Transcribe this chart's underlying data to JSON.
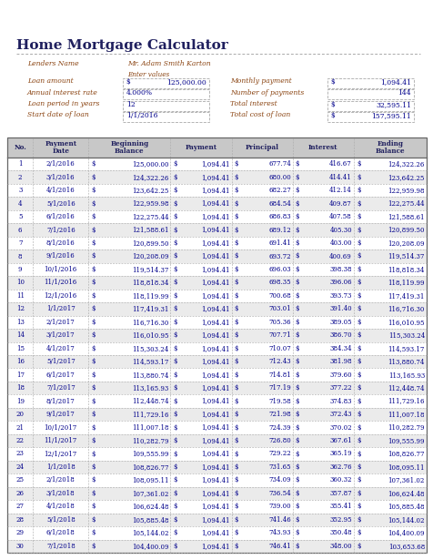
{
  "title": "Home Mortgage Calculator",
  "lender_label": "Lenders Name",
  "lender_value": "Mr. Adam Smith Karton",
  "enter_values_label": "Enter values",
  "loan_amount_label": "Loan amount",
  "loan_amount_value": "125,000.00",
  "annual_rate_label": "Annual interest rate",
  "annual_rate_value": "4.000%",
  "loan_period_label": "Loan period in years",
  "loan_period_value": "12",
  "start_date_label": "Start date of loan",
  "start_date_value": "1/1/2016",
  "monthly_payment_label": "Monthly payment",
  "monthly_payment_dollar": "$",
  "monthly_payment_value": "1,094.41",
  "num_payments_label": "Number of payments",
  "num_payments_value": "144",
  "total_interest_label": "Total interest",
  "total_interest_dollar": "$",
  "total_interest_value": "32,595.11",
  "total_cost_label": "Total cost of loan",
  "total_cost_dollar": "$",
  "total_cost_value": "157,595.11",
  "col_headers": [
    "No.",
    "Payment\nDate",
    "Beginning\nBalance",
    "Payment",
    "Principal",
    "Interest",
    "Ending\nBalance"
  ],
  "rows": [
    [
      1,
      "2/1/2016",
      "125,000.00",
      "1,094.41",
      "677.74",
      "416.67",
      "124,322.26"
    ],
    [
      2,
      "3/1/2016",
      "124,322.26",
      "1,094.41",
      "680.00",
      "414.41",
      "123,642.25"
    ],
    [
      3,
      "4/1/2016",
      "123,642.25",
      "1,094.41",
      "682.27",
      "412.14",
      "122,959.98"
    ],
    [
      4,
      "5/1/2016",
      "122,959.98",
      "1,094.41",
      "684.54",
      "409.87",
      "122,275.44"
    ],
    [
      5,
      "6/1/2016",
      "122,275.44",
      "1,094.41",
      "686.83",
      "407.58",
      "121,588.61"
    ],
    [
      6,
      "7/1/2016",
      "121,588.61",
      "1,094.41",
      "689.12",
      "405.30",
      "120,899.50"
    ],
    [
      7,
      "8/1/2016",
      "120,899.50",
      "1,094.41",
      "691.41",
      "403.00",
      "120,208.09"
    ],
    [
      8,
      "9/1/2016",
      "120,208.09",
      "1,094.41",
      "693.72",
      "400.69",
      "119,514.37"
    ],
    [
      9,
      "10/1/2016",
      "119,514.37",
      "1,094.41",
      "696.03",
      "398.38",
      "118,818.34"
    ],
    [
      10,
      "11/1/2016",
      "118,818.34",
      "1,094.41",
      "698.35",
      "396.06",
      "118,119.99"
    ],
    [
      11,
      "12/1/2016",
      "118,119.99",
      "1,094.41",
      "700.68",
      "393.73",
      "117,419.31"
    ],
    [
      12,
      "1/1/2017",
      "117,419.31",
      "1,094.41",
      "703.01",
      "391.40",
      "116,716.30"
    ],
    [
      13,
      "2/1/2017",
      "116,716.30",
      "1,094.41",
      "705.36",
      "389.05",
      "116,010.95"
    ],
    [
      14,
      "3/1/2017",
      "116,010.95",
      "1,094.41",
      "707.71",
      "386.70",
      "115,303.24"
    ],
    [
      15,
      "4/1/2017",
      "115,303.24",
      "1,094.41",
      "710.07",
      "384.34",
      "114,593.17"
    ],
    [
      16,
      "5/1/2017",
      "114,593.17",
      "1,094.41",
      "712.43",
      "381.98",
      "113,880.74"
    ],
    [
      17,
      "6/1/2017",
      "113,880.74",
      "1,094.41",
      "714.81",
      "379.60",
      "113,165.93"
    ],
    [
      18,
      "7/1/2017",
      "113,165.93",
      "1,094.41",
      "717.19",
      "377.22",
      "112,448.74"
    ],
    [
      19,
      "8/1/2017",
      "112,448.74",
      "1,094.41",
      "719.58",
      "374.83",
      "111,729.16"
    ],
    [
      20,
      "9/1/2017",
      "111,729.16",
      "1,094.41",
      "721.98",
      "372.43",
      "111,007.18"
    ],
    [
      21,
      "10/1/2017",
      "111,007.18",
      "1,094.41",
      "724.39",
      "370.02",
      "110,282.79"
    ],
    [
      22,
      "11/1/2017",
      "110,282.79",
      "1,094.41",
      "726.80",
      "367.61",
      "109,555.99"
    ],
    [
      23,
      "12/1/2017",
      "109,555.99",
      "1,094.41",
      "729.22",
      "365.19",
      "108,826.77"
    ],
    [
      24,
      "1/1/2018",
      "108,826.77",
      "1,094.41",
      "731.65",
      "362.76",
      "108,095.11"
    ],
    [
      25,
      "2/1/2018",
      "108,095.11",
      "1,094.41",
      "734.09",
      "360.32",
      "107,361.02"
    ],
    [
      26,
      "3/1/2018",
      "107,361.02",
      "1,094.41",
      "736.54",
      "357.87",
      "106,624.48"
    ],
    [
      27,
      "4/1/2018",
      "106,624.48",
      "1,094.41",
      "739.00",
      "355.41",
      "105,885.48"
    ],
    [
      28,
      "5/1/2018",
      "105,885.48",
      "1,094.41",
      "741.46",
      "352.95",
      "105,144.02"
    ],
    [
      29,
      "6/1/2018",
      "105,144.02",
      "1,094.41",
      "743.93",
      "350.48",
      "104,400.09"
    ],
    [
      30,
      "7/1/2018",
      "104,400.09",
      "1,094.41",
      "746.41",
      "348.00",
      "103,653.68"
    ]
  ],
  "bg_color": "#ffffff",
  "title_color": "#1f1f5e",
  "label_color": "#8B4513",
  "value_color": "#00008B",
  "header_bg": "#c8c8c8",
  "header_text": "#1f1f5e",
  "row_bg_even": "#ffffff",
  "row_bg_odd": "#ebebeb",
  "grid_color": "#aaaaaa",
  "border_color": "#666666",
  "title_fontsize": 11,
  "info_fontsize": 5.5,
  "table_fontsize": 5.0,
  "header_fontsize": 5.2
}
